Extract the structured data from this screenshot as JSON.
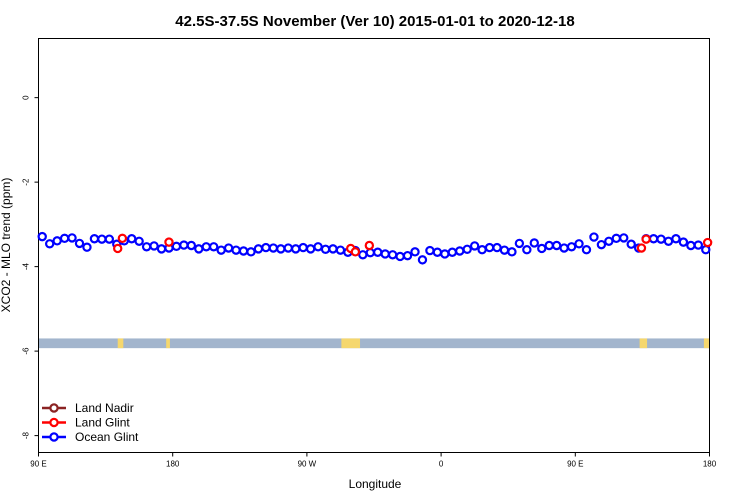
{
  "chart_data": {
    "type": "scatter",
    "title": "42.5S-37.5S November (Ver 10)   2015-01-01 to 2020-12-18",
    "xlabel": "Longitude",
    "ylabel": "XCO2 - MLO trend (ppm)",
    "xlim": [
      90,
      450
    ],
    "ylim": [
      -8.4,
      1.4
    ],
    "x_ticks": [
      {
        "value": 90,
        "label": "90 E"
      },
      {
        "value": 162,
        "label": "180"
      },
      {
        "value": 234,
        "label": "90 W"
      },
      {
        "value": 306,
        "label": "0"
      },
      {
        "value": 378,
        "label": "90 E"
      },
      {
        "value": 450,
        "label": "180"
      }
    ],
    "y_ticks": [
      {
        "value": 0,
        "label": "0"
      },
      {
        "value": -2,
        "label": "-2"
      },
      {
        "value": -4,
        "label": "-4"
      },
      {
        "value": -6,
        "label": "-6"
      },
      {
        "value": -8,
        "label": "-8"
      }
    ],
    "grid": false,
    "legend_position": "bottom-left",
    "series": [
      {
        "name": "Land Nadir",
        "color": "#8b2323",
        "x": [],
        "y": []
      },
      {
        "name": "Land Glint",
        "color": "#ff0000",
        "x": [
          132.5,
          135.0,
          160.0,
          257.5,
          260.0,
          267.5,
          413.5,
          416.0,
          449.0
        ],
        "y": [
          -3.57,
          -3.33,
          -3.42,
          -3.57,
          -3.65,
          -3.5,
          -3.56,
          -3.35,
          -3.43
        ]
      },
      {
        "name": "Ocean Glint",
        "color": "#0000ff",
        "x": [
          92.0,
          96.0,
          100.0,
          104.0,
          108.0,
          112.0,
          116.0,
          120.0,
          124.0,
          128.0,
          132.0,
          136.0,
          140.0,
          144.0,
          148.0,
          152.0,
          156.0,
          160.0,
          164.0,
          168.0,
          172.0,
          176.0,
          180.0,
          184.0,
          188.0,
          192.0,
          196.0,
          200.0,
          204.0,
          208.0,
          212.0,
          216.0,
          220.0,
          224.0,
          228.0,
          232.0,
          236.0,
          240.0,
          244.0,
          248.0,
          252.0,
          256.0,
          260.0,
          264.0,
          268.0,
          272.0,
          276.0,
          280.0,
          284.0,
          288.0,
          292.0,
          296.0,
          300.0,
          304.0,
          308.0,
          312.0,
          316.0,
          320.0,
          324.0,
          328.0,
          332.0,
          336.0,
          340.0,
          344.0,
          348.0,
          352.0,
          356.0,
          360.0,
          364.0,
          368.0,
          372.0,
          376.0,
          380.0,
          384.0,
          388.0,
          392.0,
          396.0,
          400.0,
          404.0,
          408.0,
          412.0,
          416.0,
          420.0,
          424.0,
          428.0,
          432.0,
          436.0,
          440.0,
          444.0,
          448.0
        ],
        "y": [
          -3.29,
          -3.46,
          -3.39,
          -3.33,
          -3.32,
          -3.45,
          -3.54,
          -3.34,
          -3.35,
          -3.35,
          -3.47,
          -3.39,
          -3.34,
          -3.4,
          -3.53,
          -3.51,
          -3.58,
          -3.56,
          -3.52,
          -3.49,
          -3.5,
          -3.58,
          -3.53,
          -3.53,
          -3.61,
          -3.56,
          -3.61,
          -3.63,
          -3.65,
          -3.58,
          -3.55,
          -3.56,
          -3.58,
          -3.56,
          -3.58,
          -3.55,
          -3.58,
          -3.53,
          -3.59,
          -3.58,
          -3.61,
          -3.66,
          -3.62,
          -3.72,
          -3.67,
          -3.66,
          -3.7,
          -3.72,
          -3.76,
          -3.74,
          -3.65,
          -3.84,
          -3.62,
          -3.66,
          -3.7,
          -3.66,
          -3.63,
          -3.59,
          -3.51,
          -3.6,
          -3.55,
          -3.55,
          -3.61,
          -3.65,
          -3.45,
          -3.6,
          -3.44,
          -3.57,
          -3.5,
          -3.5,
          -3.56,
          -3.53,
          -3.46,
          -3.6,
          -3.3,
          -3.48,
          -3.4,
          -3.33,
          -3.32,
          -3.47,
          -3.56,
          -3.34,
          -3.34,
          -3.35,
          -3.4,
          -3.34,
          -3.42,
          -3.5,
          -3.49,
          -3.6
        ]
      }
    ],
    "surface_strip": {
      "y_range": [
        -5.93,
        -5.7
      ],
      "ocean_color": "#a2b5cd",
      "land_color": "#f5d76e",
      "land_x_ranges": [
        [
          132.5,
          135.5
        ],
        [
          158.5,
          160.5
        ],
        [
          252.5,
          262.5
        ],
        [
          412.5,
          416.5
        ],
        [
          447.0,
          450.0
        ]
      ]
    }
  }
}
